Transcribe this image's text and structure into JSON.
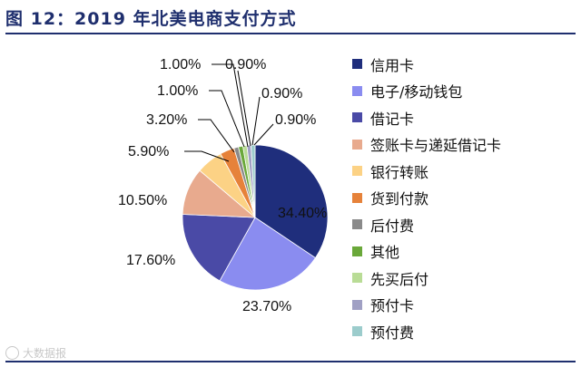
{
  "title": "图 12：2019 年北美电商支付方式",
  "watermark": "大数据报",
  "chart_data": {
    "type": "pie",
    "title": "图 12：2019 年北美电商支付方式",
    "categories": [
      "信用卡",
      "电子/移动钱包",
      "借记卡",
      "签账卡与递延借记卡",
      "银行转账",
      "货到付款",
      "后付费",
      "其他",
      "先买后付",
      "预付卡",
      "预付费"
    ],
    "values": [
      34.4,
      23.7,
      17.6,
      10.5,
      5.9,
      3.2,
      1.0,
      1.0,
      0.9,
      0.9,
      0.9
    ],
    "value_labels": [
      "34.40%",
      "23.70%",
      "17.60%",
      "10.50%",
      "5.90%",
      "3.20%",
      "1.00%",
      "1.00%",
      "0.90%",
      "0.90%",
      "0.90%"
    ],
    "colors": [
      "#1f2e7c",
      "#8a8cf0",
      "#4a4aa6",
      "#e8aa8e",
      "#fcd285",
      "#e6823a",
      "#8a8a8a",
      "#6aa83a",
      "#b9dc96",
      "#a0a0c4",
      "#9ccccc"
    ],
    "start_angle_deg": 0,
    "direction": "clockwise",
    "legend_position": "right"
  }
}
